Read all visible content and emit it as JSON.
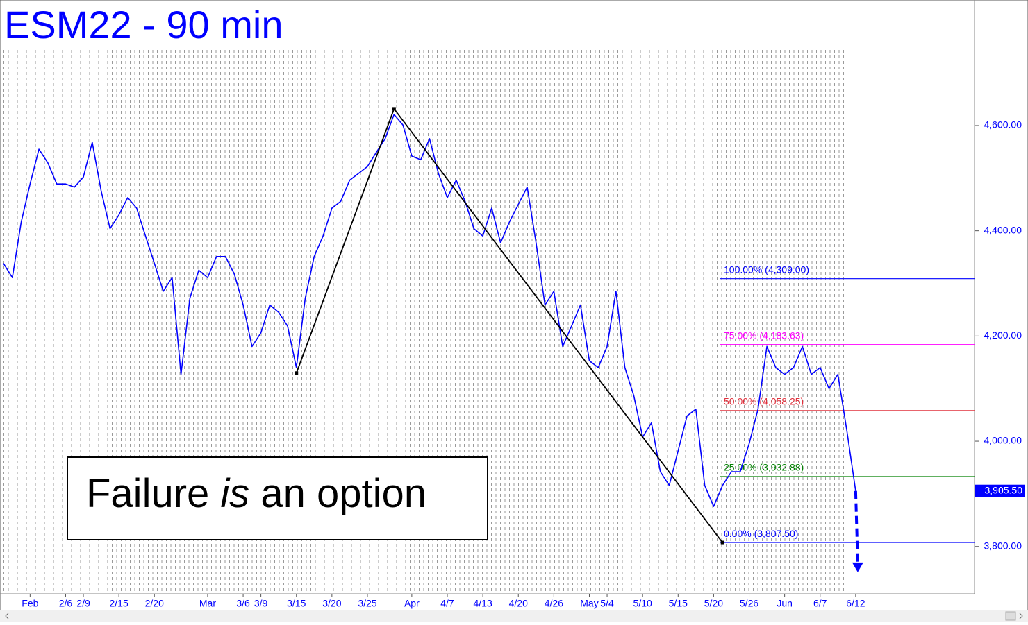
{
  "chart_data": {
    "type": "line",
    "title": "ESM22 - 90 min",
    "annotation": [
      "Failure ",
      "is",
      " an option"
    ],
    "categories": [
      null,
      null,
      null,
      "Feb",
      null,
      null,
      null,
      "2/6",
      null,
      "2/9",
      null,
      null,
      null,
      "2/15",
      null,
      null,
      null,
      "2/20",
      null,
      null,
      null,
      null,
      null,
      "Mar",
      null,
      null,
      null,
      "3/6",
      null,
      "3/9",
      null,
      null,
      null,
      "3/15",
      null,
      null,
      null,
      "3/20",
      null,
      null,
      null,
      "3/25",
      null,
      null,
      null,
      null,
      "Apr",
      null,
      null,
      null,
      "4/7",
      null,
      null,
      null,
      "4/13",
      null,
      null,
      null,
      "4/20",
      null,
      null,
      null,
      "4/26",
      null,
      null,
      null,
      "May",
      null,
      "5/4",
      null,
      null,
      null,
      "5/10",
      null,
      null,
      null,
      "5/15",
      null,
      null,
      null,
      "5/20",
      null,
      null,
      null,
      "5/26",
      null,
      null,
      null,
      "Jun",
      null,
      null,
      null,
      "6/7",
      null,
      null,
      null,
      "6/12"
    ],
    "series": [
      {
        "name": "ESM22",
        "color": "#0000ff",
        "values": [
          4338,
          4311,
          4417,
          4489,
          4555,
          4529,
          4489,
          4489,
          4483,
          4502,
          4568,
          4476,
          4404,
          4430,
          4463,
          4443,
          4390,
          4338,
          4285,
          4311,
          4127,
          4272,
          4325,
          4311,
          4351,
          4351,
          4318,
          4259,
          4180,
          4206,
          4259,
          4245,
          4219,
          4140,
          4272,
          4351,
          4390,
          4443,
          4456,
          4496,
          4509,
          4522,
          4549,
          4575,
          4621,
          4601,
          4542,
          4535,
          4575,
          4509,
          4463,
          4496,
          4456,
          4404,
          4390,
          4443,
          4377,
          4417,
          4450,
          4483,
          4377,
          4259,
          4285,
          4180,
          4219,
          4259,
          4153,
          4140,
          4180,
          4285,
          4140,
          4087,
          4008,
          4035,
          3942,
          3916,
          3982,
          4048,
          4061,
          3916,
          3876,
          3916,
          3942,
          3942,
          3995,
          4061,
          4180,
          4140,
          4127,
          4140,
          4180,
          4127,
          4140,
          4100,
          4127,
          4021,
          3905.5
        ]
      }
    ],
    "ylim": [
      3710,
      4832
    ],
    "yticks": [
      {
        "value": 3800,
        "label": "3,800.00"
      },
      {
        "value": 4000,
        "label": "4,000.00"
      },
      {
        "value": 4200,
        "label": "4,200.00"
      },
      {
        "value": 4400,
        "label": "4,400.00"
      },
      {
        "value": 4600,
        "label": "4,600.00"
      }
    ],
    "last_price": {
      "value": 3905.5,
      "label": "3,905.50"
    },
    "fib_levels": [
      {
        "label": "100.00% (4,309.00)",
        "value": 4309,
        "color": "#0000ff"
      },
      {
        "label": "75.00% (4,183.63)",
        "value": 4183.63,
        "color": "#ff00ff"
      },
      {
        "label": "50.00% (4,058.25)",
        "value": 4058.25,
        "color": "#e0303c"
      },
      {
        "label": "25.00% (3,932.88)",
        "value": 3932.88,
        "color": "#008000"
      },
      {
        "label": "0.00% (3,807.50)",
        "value": 3807.5,
        "color": "#0000ff"
      }
    ],
    "swing_points": [
      {
        "index": 33,
        "value": 4129.5
      },
      {
        "index": 44,
        "value": 4631.75
      },
      {
        "index": 81,
        "value": 3807.5
      }
    ],
    "arrow_target": 3751
  }
}
